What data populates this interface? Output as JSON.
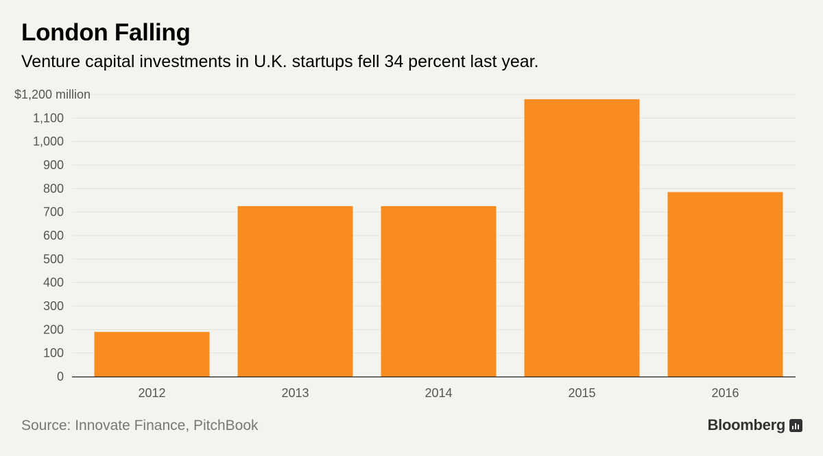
{
  "chart_data": {
    "type": "bar",
    "title": "London Falling",
    "subtitle": "Venture capital investments in U.K. startups fell 34 percent last year.",
    "categories": [
      "2012",
      "2013",
      "2014",
      "2015",
      "2016"
    ],
    "values": [
      190,
      725,
      725,
      1180,
      785
    ],
    "yticks": [
      "0",
      "100",
      "200",
      "300",
      "400",
      "500",
      "600",
      "700",
      "800",
      "900",
      "1,000",
      "1,100",
      "$1,200 million"
    ],
    "ylim": [
      0,
      1200
    ],
    "grid": true,
    "bar_color": "#f98c20",
    "xlabel": "",
    "ylabel": ""
  },
  "footer": {
    "source": "Source: Innovate Finance, PitchBook",
    "brand": "Bloomberg"
  }
}
